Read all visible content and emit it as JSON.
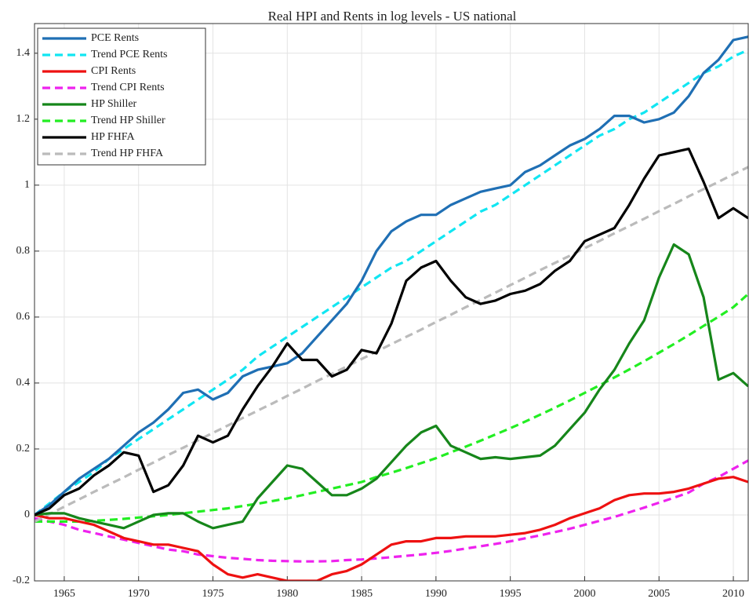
{
  "chart_data": {
    "type": "line",
    "title": "Real HPI and Rents in log levels - US national",
    "x": [
      1963,
      1964,
      1965,
      1966,
      1967,
      1968,
      1969,
      1970,
      1971,
      1972,
      1973,
      1974,
      1975,
      1976,
      1977,
      1978,
      1979,
      1980,
      1981,
      1982,
      1983,
      1984,
      1985,
      1986,
      1987,
      1988,
      1989,
      1990,
      1991,
      1992,
      1993,
      1994,
      1995,
      1996,
      1997,
      1998,
      1999,
      2000,
      2001,
      2002,
      2003,
      2004,
      2005,
      2006,
      2007,
      2008,
      2009,
      2010,
      2011
    ],
    "series": [
      {
        "name": "PCE Rents",
        "color": "#1f6fb4",
        "dashed": false,
        "values": [
          0.0,
          0.03,
          0.07,
          0.11,
          0.14,
          0.17,
          0.21,
          0.25,
          0.28,
          0.32,
          0.37,
          0.38,
          0.35,
          0.37,
          0.42,
          0.44,
          0.45,
          0.46,
          0.49,
          0.54,
          0.59,
          0.64,
          0.71,
          0.8,
          0.86,
          0.89,
          0.91,
          0.91,
          0.94,
          0.96,
          0.98,
          0.99,
          1.0,
          1.04,
          1.06,
          1.09,
          1.12,
          1.14,
          1.17,
          1.21,
          1.21,
          1.19,
          1.2,
          1.22,
          1.27,
          1.34,
          1.38,
          1.44,
          1.45
        ]
      },
      {
        "name": "Trend PCE Rents",
        "color": "#11e6f2",
        "dashed": true,
        "values": [
          0.0,
          0.035,
          0.07,
          0.1,
          0.13,
          0.17,
          0.2,
          0.23,
          0.26,
          0.29,
          0.32,
          0.35,
          0.38,
          0.41,
          0.44,
          0.48,
          0.51,
          0.54,
          0.57,
          0.6,
          0.63,
          0.66,
          0.69,
          0.72,
          0.75,
          0.77,
          0.8,
          0.83,
          0.86,
          0.89,
          0.92,
          0.94,
          0.97,
          1.0,
          1.03,
          1.06,
          1.09,
          1.12,
          1.15,
          1.17,
          1.2,
          1.22,
          1.25,
          1.28,
          1.31,
          1.34,
          1.36,
          1.39,
          1.41
        ]
      },
      {
        "name": "CPI Rents",
        "color": "#ee1111",
        "dashed": false,
        "values": [
          0.0,
          -0.01,
          -0.01,
          -0.02,
          -0.03,
          -0.05,
          -0.07,
          -0.08,
          -0.09,
          -0.09,
          -0.1,
          -0.11,
          -0.15,
          -0.18,
          -0.19,
          -0.18,
          -0.19,
          -0.2,
          -0.2,
          -0.2,
          -0.18,
          -0.17,
          -0.15,
          -0.12,
          -0.09,
          -0.08,
          -0.08,
          -0.07,
          -0.07,
          -0.065,
          -0.065,
          -0.065,
          -0.06,
          -0.055,
          -0.045,
          -0.03,
          -0.01,
          0.005,
          0.02,
          0.045,
          0.06,
          0.065,
          0.065,
          0.07,
          0.08,
          0.095,
          0.11,
          0.115,
          0.1
        ]
      },
      {
        "name": "Trend CPI Rents",
        "color": "#ee22ee",
        "dashed": true,
        "values": [
          -0.01,
          -0.02,
          -0.03,
          -0.045,
          -0.055,
          -0.065,
          -0.075,
          -0.085,
          -0.095,
          -0.105,
          -0.11,
          -0.12,
          -0.125,
          -0.13,
          -0.133,
          -0.137,
          -0.139,
          -0.14,
          -0.141,
          -0.141,
          -0.14,
          -0.137,
          -0.135,
          -0.132,
          -0.128,
          -0.124,
          -0.12,
          -0.115,
          -0.109,
          -0.102,
          -0.095,
          -0.088,
          -0.08,
          -0.071,
          -0.062,
          -0.052,
          -0.042,
          -0.03,
          -0.018,
          -0.006,
          0.008,
          0.022,
          0.037,
          0.052,
          0.068,
          0.095,
          0.115,
          0.14,
          0.165
        ]
      },
      {
        "name": "HP Shiller",
        "color": "#16861a",
        "dashed": false,
        "values": [
          0.0,
          0.005,
          0.005,
          -0.01,
          -0.02,
          -0.03,
          -0.04,
          -0.02,
          0.0,
          0.005,
          0.005,
          -0.02,
          -0.04,
          -0.03,
          -0.02,
          0.05,
          0.1,
          0.15,
          0.14,
          0.1,
          0.06,
          0.06,
          0.08,
          0.11,
          0.16,
          0.21,
          0.25,
          0.27,
          0.21,
          0.19,
          0.17,
          0.175,
          0.17,
          0.175,
          0.18,
          0.21,
          0.26,
          0.31,
          0.38,
          0.44,
          0.52,
          0.59,
          0.72,
          0.82,
          0.79,
          0.66,
          0.41,
          0.43,
          0.39
        ]
      },
      {
        "name": "Trend HP Shiller",
        "color": "#22ee22",
        "dashed": true,
        "values": [
          -0.02,
          -0.02,
          -0.02,
          -0.02,
          -0.018,
          -0.015,
          -0.012,
          -0.008,
          -0.004,
          0.0,
          0.005,
          0.01,
          0.015,
          0.02,
          0.027,
          0.034,
          0.042,
          0.05,
          0.06,
          0.07,
          0.08,
          0.09,
          0.1,
          0.115,
          0.128,
          0.142,
          0.157,
          0.172,
          0.19,
          0.207,
          0.225,
          0.244,
          0.263,
          0.283,
          0.304,
          0.325,
          0.347,
          0.37,
          0.393,
          0.417,
          0.441,
          0.466,
          0.492,
          0.518,
          0.545,
          0.573,
          0.601,
          0.63,
          0.67
        ]
      },
      {
        "name": "HP FHFA",
        "color": "#000000",
        "dashed": false,
        "values": [
          0.0,
          0.02,
          0.06,
          0.08,
          0.12,
          0.15,
          0.19,
          0.18,
          0.07,
          0.09,
          0.15,
          0.24,
          0.22,
          0.24,
          0.32,
          0.39,
          0.45,
          0.52,
          0.47,
          0.47,
          0.42,
          0.44,
          0.5,
          0.49,
          0.58,
          0.71,
          0.75,
          0.77,
          0.71,
          0.66,
          0.64,
          0.65,
          0.67,
          0.68,
          0.7,
          0.74,
          0.77,
          0.83,
          0.85,
          0.87,
          0.94,
          1.02,
          1.09,
          1.1,
          1.11,
          1.01,
          0.9,
          0.93,
          0.9
        ]
      },
      {
        "name": "Trend HP FHFA",
        "color": "#bbbbbb",
        "dashed": true,
        "values": [
          -0.02,
          0.002,
          0.025,
          0.047,
          0.07,
          0.092,
          0.114,
          0.137,
          0.159,
          0.182,
          0.204,
          0.226,
          0.249,
          0.271,
          0.294,
          0.316,
          0.338,
          0.361,
          0.383,
          0.406,
          0.428,
          0.45,
          0.473,
          0.495,
          0.518,
          0.54,
          0.562,
          0.585,
          0.607,
          0.63,
          0.652,
          0.674,
          0.697,
          0.719,
          0.742,
          0.764,
          0.786,
          0.809,
          0.831,
          0.854,
          0.876,
          0.898,
          0.921,
          0.943,
          0.966,
          0.988,
          1.01,
          1.033,
          1.055
        ]
      }
    ],
    "xlim": [
      1963,
      2011
    ],
    "xticks": [
      1965,
      1970,
      1975,
      1980,
      1985,
      1990,
      1995,
      2000,
      2005,
      2010
    ],
    "ylim": [
      -0.2,
      1.49
    ],
    "yticks": [
      -0.2,
      0,
      0.2,
      0.4,
      0.6,
      0.8,
      1,
      1.2,
      1.4
    ],
    "grid": true,
    "legend": "top-left"
  }
}
